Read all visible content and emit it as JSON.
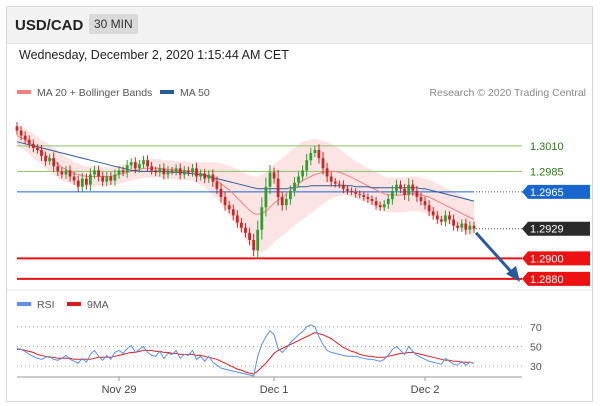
{
  "header": {
    "symbol": "USD/CAD",
    "timeframe": "30 MIN"
  },
  "datetime": "Wednesday, December 2, 2020 1:15:44 AM CET",
  "legend": {
    "ma20_label": "MA 20 + Bollinger Bands",
    "ma50_label": "MA 50",
    "credit": "Research © 2020 Trading Central"
  },
  "rsi_legend": {
    "rsi_label": "RSI",
    "ma_label": "9MA"
  },
  "colors": {
    "up_candle": "#2e9e2e",
    "down_candle": "#c62828",
    "ma20": "#f08080",
    "ma50": "#2a5a9a",
    "band_fill": "#fde4e4",
    "green_level": "#8cc06a",
    "blue_level": "#1a66d0",
    "red_level": "#ee1111",
    "rsi": "#5b8fe8",
    "rsi_ma": "#d61e1e"
  },
  "chart_data": [
    {
      "type": "candlestick",
      "title": "USD/CAD 30 MIN",
      "x_ticks": [
        "Nov 29",
        "Dec 1",
        "Dec 2"
      ],
      "ylim": [
        1.2875,
        1.3045
      ],
      "levels": [
        {
          "value": 1.301,
          "label": "1.3010",
          "style": "green"
        },
        {
          "value": 1.2985,
          "label": "1.2985",
          "style": "green"
        },
        {
          "value": 1.2965,
          "label": "1.2965",
          "style": "blue"
        },
        {
          "value": 1.2929,
          "label": "1.2929",
          "style": "current"
        },
        {
          "value": 1.29,
          "label": "1.2900",
          "style": "red"
        },
        {
          "value": 1.288,
          "label": "1.2880",
          "style": "red"
        }
      ],
      "close": [
        1.3025,
        1.302,
        1.3016,
        1.3012,
        1.3008,
        1.3006,
        1.3,
        1.2995,
        1.2998,
        1.299,
        1.2985,
        1.2982,
        1.2986,
        1.298,
        1.2976,
        1.297,
        1.2978,
        1.2972,
        1.2982,
        1.2986,
        1.298,
        1.2975,
        1.298,
        1.2976,
        1.2982,
        1.2986,
        1.2984,
        1.2991,
        1.2994,
        1.2988,
        1.2992,
        1.2996,
        1.299,
        1.2986,
        1.2984,
        1.2988,
        1.2982,
        1.2986,
        1.2985,
        1.2988,
        1.2982,
        1.2986,
        1.2984,
        1.2988,
        1.298,
        1.2983,
        1.2978,
        1.2982,
        1.2975,
        1.2968,
        1.296,
        1.2952,
        1.2948,
        1.2942,
        1.2935,
        1.293,
        1.2925,
        1.2918,
        1.2908,
        1.2928,
        1.295,
        1.297,
        1.2984,
        1.2978,
        1.296,
        1.2952,
        1.2958,
        1.2966,
        1.2974,
        1.298,
        1.2986,
        1.2996,
        1.3003,
        1.3006,
        1.2998,
        1.2988,
        1.298,
        1.2975,
        1.2973,
        1.2972,
        1.2968,
        1.2966,
        1.2965,
        1.2963,
        1.2962,
        1.296,
        1.2958,
        1.2956,
        1.2952,
        1.295,
        1.2953,
        1.2958,
        1.2966,
        1.2972,
        1.2968,
        1.2962,
        1.2972,
        1.2966,
        1.296,
        1.2956,
        1.2952,
        1.2946,
        1.2942,
        1.2938,
        1.2936,
        1.2942,
        1.2938,
        1.2932,
        1.293,
        1.2934,
        1.2928,
        1.2932,
        1.2929
      ],
      "ma20": [
        1.302,
        1.3018,
        1.3016,
        1.3013,
        1.301,
        1.3007,
        1.3004,
        1.3001,
        1.2998,
        1.2995,
        1.2992,
        1.2989,
        1.2987,
        1.2985,
        1.2983,
        1.2982,
        1.2981,
        1.298,
        1.298,
        1.298,
        1.298,
        1.298,
        1.298,
        1.298,
        1.2981,
        1.2982,
        1.2983,
        1.2984,
        1.2985,
        1.2986,
        1.2987,
        1.2988,
        1.2988,
        1.2988,
        1.2988,
        1.2988,
        1.2987,
        1.2987,
        1.2987,
        1.2986,
        1.2986,
        1.2986,
        1.2985,
        1.2985,
        1.2984,
        1.2983,
        1.2982,
        1.298,
        1.2978,
        1.2976,
        1.2973,
        1.297,
        1.2967,
        1.2963,
        1.2959,
        1.2955,
        1.2951,
        1.2947,
        1.2944,
        1.2943,
        1.2944,
        1.2946,
        1.295,
        1.2954,
        1.2957,
        1.296,
        1.2963,
        1.2967,
        1.297,
        1.2973,
        1.2976,
        1.2978,
        1.298,
        1.2982,
        1.2983,
        1.2984,
        1.2985,
        1.2985,
        1.2985,
        1.2984,
        1.2983,
        1.2981,
        1.2979,
        1.2977,
        1.2975,
        1.2973,
        1.2971,
        1.2969,
        1.2967,
        1.2965,
        1.2963,
        1.2962,
        1.2962,
        1.2962,
        1.2962,
        1.2962,
        1.2963,
        1.2963,
        1.2963,
        1.2962,
        1.2961,
        1.296,
        1.2958,
        1.2956,
        1.2954,
        1.2952,
        1.295,
        1.2948,
        1.2946,
        1.2944,
        1.2942,
        1.294,
        1.2938
      ],
      "ma50": [
        1.3014,
        1.3013,
        1.3012,
        1.3011,
        1.301,
        1.3009,
        1.3008,
        1.3007,
        1.3006,
        1.3005,
        1.3004,
        1.3003,
        1.3002,
        1.3001,
        1.3,
        1.2999,
        1.2998,
        1.2997,
        1.2996,
        1.2995,
        1.2994,
        1.2993,
        1.2992,
        1.2991,
        1.299,
        1.2989,
        1.2988,
        1.2987,
        1.2986,
        1.2986,
        1.2985,
        1.2985,
        1.2985,
        1.2985,
        1.2985,
        1.2985,
        1.2985,
        1.2985,
        1.2984,
        1.2984,
        1.2984,
        1.2984,
        1.2983,
        1.2983,
        1.2982,
        1.2982,
        1.2981,
        1.298,
        1.2979,
        1.2978,
        1.2977,
        1.2976,
        1.2975,
        1.2974,
        1.2973,
        1.2972,
        1.2971,
        1.297,
        1.2969,
        1.2968,
        1.2968,
        1.2968,
        1.2968,
        1.2968,
        1.2968,
        1.2968,
        1.2968,
        1.2969,
        1.2969,
        1.297,
        1.297,
        1.297,
        1.2971,
        1.2971,
        1.2971,
        1.2971,
        1.2971,
        1.2971,
        1.2971,
        1.2971,
        1.2971,
        1.2971,
        1.2971,
        1.297,
        1.297,
        1.297,
        1.297,
        1.2969,
        1.2969,
        1.2969,
        1.2969,
        1.2969,
        1.2969,
        1.2969,
        1.2969,
        1.2969,
        1.2969,
        1.2969,
        1.2969,
        1.2968,
        1.2968,
        1.2967,
        1.2966,
        1.2965,
        1.2964,
        1.2963,
        1.2962,
        1.2961,
        1.296,
        1.2959,
        1.2958,
        1.2957,
        1.2956
      ],
      "bb_half_width": [
        0.001,
        0.001,
        0.0011,
        0.0011,
        0.0012,
        0.0012,
        0.0012,
        0.0013,
        0.0013,
        0.0013,
        0.0013,
        0.0013,
        0.0012,
        0.0012,
        0.0011,
        0.0011,
        0.001,
        0.001,
        0.001,
        0.001,
        0.0009,
        0.0009,
        0.0009,
        0.0009,
        0.0009,
        0.0009,
        0.0009,
        0.0009,
        0.0009,
        0.0009,
        0.0009,
        0.0009,
        0.0009,
        0.0009,
        0.0009,
        0.0009,
        0.0009,
        0.0009,
        0.0009,
        0.0009,
        0.0009,
        0.0009,
        0.0009,
        0.0009,
        0.001,
        0.0011,
        0.0012,
        0.0014,
        0.0016,
        0.0018,
        0.002,
        0.0022,
        0.0024,
        0.0026,
        0.0028,
        0.003,
        0.0032,
        0.0034,
        0.0036,
        0.0037,
        0.0038,
        0.0038,
        0.0038,
        0.0038,
        0.0038,
        0.0038,
        0.0038,
        0.0038,
        0.0038,
        0.0038,
        0.0038,
        0.0037,
        0.0036,
        0.0035,
        0.0033,
        0.0031,
        0.0029,
        0.0027,
        0.0025,
        0.0023,
        0.0021,
        0.002,
        0.0019,
        0.0018,
        0.0018,
        0.0017,
        0.0017,
        0.0017,
        0.0017,
        0.0017,
        0.0017,
        0.0017,
        0.0017,
        0.0017,
        0.0017,
        0.0017,
        0.0017,
        0.0017,
        0.0017,
        0.0017,
        0.0017,
        0.0017,
        0.0017,
        0.0017,
        0.0017,
        0.0017,
        0.0017,
        0.0017,
        0.0017,
        0.0017,
        0.0017,
        0.0017,
        0.0017
      ],
      "forecast": {
        "from": 1.2929,
        "to": 1.288
      }
    },
    {
      "type": "line",
      "title": "RSI",
      "ylim": [
        20,
        80
      ],
      "y_ticks": [
        70,
        50,
        30
      ],
      "series": [
        {
          "name": "RSI",
          "values": [
            48,
            47,
            45,
            42,
            40,
            38,
            37,
            39,
            40,
            37,
            36,
            38,
            41,
            37,
            35,
            33,
            38,
            34,
            42,
            46,
            40,
            36,
            41,
            37,
            44,
            46,
            43,
            48,
            51,
            44,
            47,
            50,
            44,
            41,
            40,
            45,
            38,
            43,
            42,
            46,
            38,
            42,
            41,
            46,
            37,
            40,
            35,
            40,
            34,
            31,
            28,
            27,
            26,
            25,
            24,
            23,
            22,
            21,
            20,
            40,
            52,
            60,
            66,
            62,
            48,
            44,
            48,
            54,
            58,
            62,
            65,
            70,
            72,
            70,
            60,
            52,
            46,
            44,
            43,
            42,
            41,
            40,
            40,
            40,
            39,
            38,
            37,
            37,
            36,
            35,
            37,
            41,
            47,
            50,
            46,
            42,
            50,
            45,
            41,
            39,
            37,
            35,
            34,
            33,
            32,
            38,
            35,
            32,
            31,
            35,
            31,
            34,
            33
          ]
        },
        {
          "name": "9MA",
          "values": [
            47,
            47,
            46,
            45,
            44,
            42,
            41,
            40,
            39,
            39,
            38,
            38,
            38,
            38,
            37,
            37,
            37,
            37,
            37,
            38,
            39,
            39,
            39,
            39,
            40,
            41,
            42,
            43,
            44,
            44,
            45,
            46,
            46,
            46,
            45,
            45,
            44,
            44,
            43,
            43,
            42,
            42,
            42,
            42,
            41,
            41,
            40,
            39,
            38,
            37,
            35,
            33,
            31,
            29,
            27,
            26,
            24,
            23,
            22,
            25,
            29,
            33,
            38,
            43,
            46,
            48,
            50,
            52,
            54,
            56,
            58,
            60,
            62,
            64,
            63,
            62,
            60,
            58,
            55,
            52,
            49,
            47,
            45,
            44,
            42,
            41,
            40,
            40,
            39,
            39,
            39,
            40,
            41,
            42,
            43,
            43,
            44,
            44,
            43,
            42,
            41,
            40,
            39,
            38,
            37,
            36,
            36,
            35,
            35,
            34,
            34,
            34,
            33
          ]
        }
      ]
    }
  ]
}
